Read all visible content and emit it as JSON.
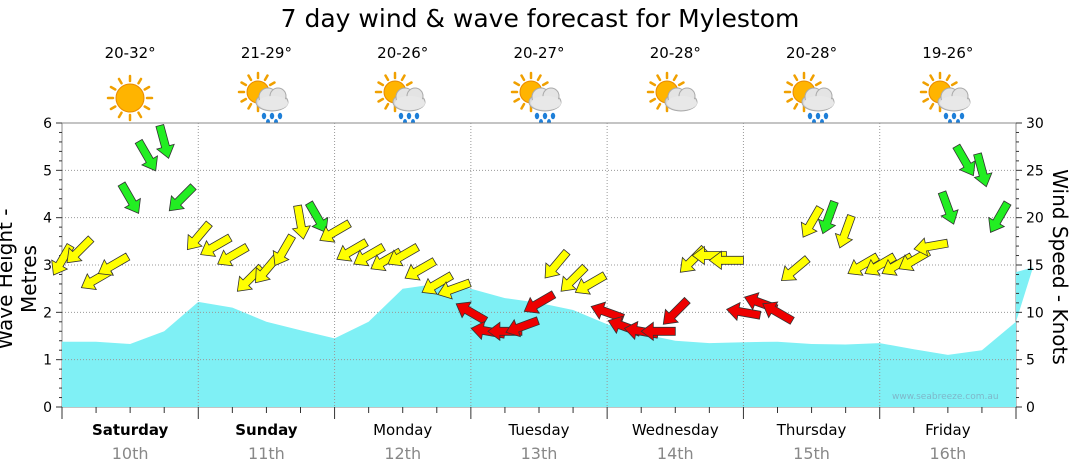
{
  "title": "7 day wind & wave forecast for Mylestom",
  "days": [
    {
      "name": "Saturday",
      "date": "10th",
      "temp": "20-32°",
      "icon": "sunny-icon",
      "bold": true
    },
    {
      "name": "Sunday",
      "date": "11th",
      "temp": "21-29°",
      "icon": "partly-cloudy-rain-icon",
      "bold": true
    },
    {
      "name": "Monday",
      "date": "12th",
      "temp": "20-26°",
      "icon": "partly-cloudy-rain-icon",
      "bold": false
    },
    {
      "name": "Tuesday",
      "date": "13th",
      "temp": "20-27°",
      "icon": "partly-cloudy-rain-icon",
      "bold": false
    },
    {
      "name": "Wednesday",
      "date": "14th",
      "temp": "20-28°",
      "icon": "partly-cloudy-icon",
      "bold": false
    },
    {
      "name": "Thursday",
      "date": "15th",
      "temp": "20-28°",
      "icon": "partly-cloudy-rain-icon",
      "bold": false
    },
    {
      "name": "Friday",
      "date": "16th",
      "temp": "19-26°",
      "icon": "partly-cloudy-rain-icon",
      "bold": false
    }
  ],
  "watermark": "www.seabreeze.com.au",
  "colors": {
    "wave_fill": "#7ff0f5",
    "wind_low": "#ffff00",
    "wind_mid": "#22ee22",
    "wind_high": "#ee0000"
  },
  "chart_data": {
    "type": "area",
    "x_unit": "hours from start of Saturday 10th",
    "y_left": {
      "label": "Wave Height - Metres",
      "range": [
        0,
        6
      ],
      "ticks": [
        0,
        1,
        2,
        3,
        4,
        5,
        6
      ]
    },
    "y_right": {
      "label": "Wind Speed - Knots",
      "range": [
        0,
        30
      ],
      "ticks": [
        0,
        5,
        10,
        15,
        20,
        25,
        30
      ]
    },
    "wave_height": {
      "x": [
        0,
        6,
        12,
        18,
        24,
        30,
        36,
        42,
        48,
        54,
        60,
        66,
        72,
        78,
        84,
        90,
        96,
        102,
        108,
        114,
        120,
        126,
        132,
        138,
        144,
        150,
        156,
        162,
        168
      ],
      "y": [
        1.38,
        1.38,
        1.33,
        1.6,
        2.22,
        2.1,
        1.8,
        1.62,
        1.45,
        1.8,
        2.5,
        2.6,
        2.5,
        2.3,
        2.2,
        2.05,
        1.75,
        1.55,
        1.4,
        1.35,
        1.37,
        1.38,
        1.33,
        1.32,
        1.35,
        1.22,
        1.1,
        1.2,
        1.8
      ],
      "y2": [
        2.95,
        2.85
      ]
    },
    "wind": {
      "x": [
        0,
        3,
        6,
        9,
        12,
        15,
        18,
        21,
        24,
        27,
        30,
        33,
        36,
        39,
        42,
        45,
        48,
        51,
        54,
        57,
        60,
        63,
        66,
        69,
        72,
        75,
        78,
        81,
        84,
        87,
        90,
        93,
        96,
        99,
        102,
        105,
        108,
        111,
        114,
        117,
        120,
        123,
        126,
        129,
        132,
        135,
        138,
        141,
        144,
        147,
        150,
        153,
        156,
        159,
        162,
        165
      ],
      "speed": [
        15.5,
        16.5,
        13.5,
        15,
        22,
        26.5,
        28,
        22,
        18,
        17,
        16,
        13.5,
        14.5,
        16.5,
        19.5,
        20,
        18.5,
        16.5,
        16,
        15.5,
        16,
        14.5,
        13,
        12.5,
        10,
        8,
        8,
        8.5,
        11,
        15,
        13.5,
        13,
        10,
        8.5,
        8,
        8,
        10,
        15.5,
        16,
        15.5,
        10,
        11,
        10,
        14.5,
        19.5,
        20,
        18.5,
        15,
        15,
        15,
        15.5,
        17,
        21,
        26,
        25,
        20
      ],
      "direction_deg": [
        30,
        45,
        60,
        60,
        330,
        330,
        345,
        45,
        40,
        60,
        60,
        45,
        40,
        30,
        350,
        330,
        60,
        60,
        60,
        60,
        60,
        60,
        60,
        70,
        120,
        100,
        90,
        70,
        60,
        40,
        45,
        60,
        110,
        110,
        100,
        90,
        45,
        45,
        90,
        90,
        100,
        110,
        120,
        50,
        30,
        20,
        20,
        60,
        60,
        60,
        60,
        80,
        340,
        330,
        345,
        30
      ]
    }
  }
}
